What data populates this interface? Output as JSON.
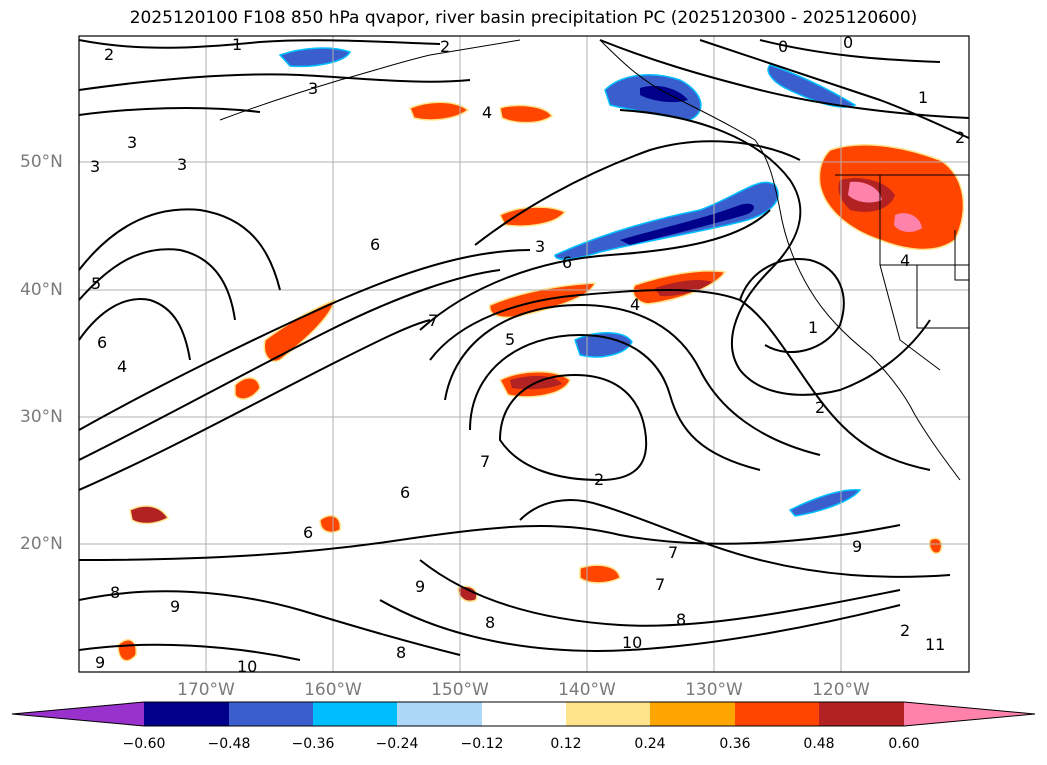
{
  "title": "2025120100 F108 850 hPa qvapor, river basin precipitation PC (2025120300 - 2025120600)",
  "map": {
    "latitude_labels": [
      "50°N",
      "40°N",
      "30°N",
      "20°N"
    ],
    "longitude_labels": [
      "170°W",
      "160°W",
      "150°W",
      "140°W",
      "130°W",
      "120°W"
    ],
    "contour_labels": [
      "1",
      "2",
      "2",
      "0",
      "0",
      "1",
      "2",
      "3",
      "3",
      "3",
      "3",
      "3",
      "4",
      "4",
      "4",
      "4",
      "5",
      "5",
      "6",
      "6",
      "6",
      "6",
      "6",
      "7",
      "7",
      "7",
      "8",
      "8",
      "8",
      "8",
      "9",
      "9",
      "9",
      "9",
      "10",
      "10",
      "11",
      "2",
      "2",
      "1",
      "2",
      "7"
    ]
  },
  "colorbar": {
    "ticks": [
      "−0.60",
      "−0.48",
      "−0.36",
      "−0.24",
      "−0.12",
      "0.12",
      "0.24",
      "0.36",
      "0.48",
      "0.60"
    ],
    "colors": [
      "#9932CC",
      "#00008B",
      "#3A5FCD",
      "#00BFFF",
      "#ADD8F7",
      "#FFFFFF",
      "#FFE48C",
      "#FFA500",
      "#FF4500",
      "#B22222",
      "#FF82AB"
    ]
  }
}
